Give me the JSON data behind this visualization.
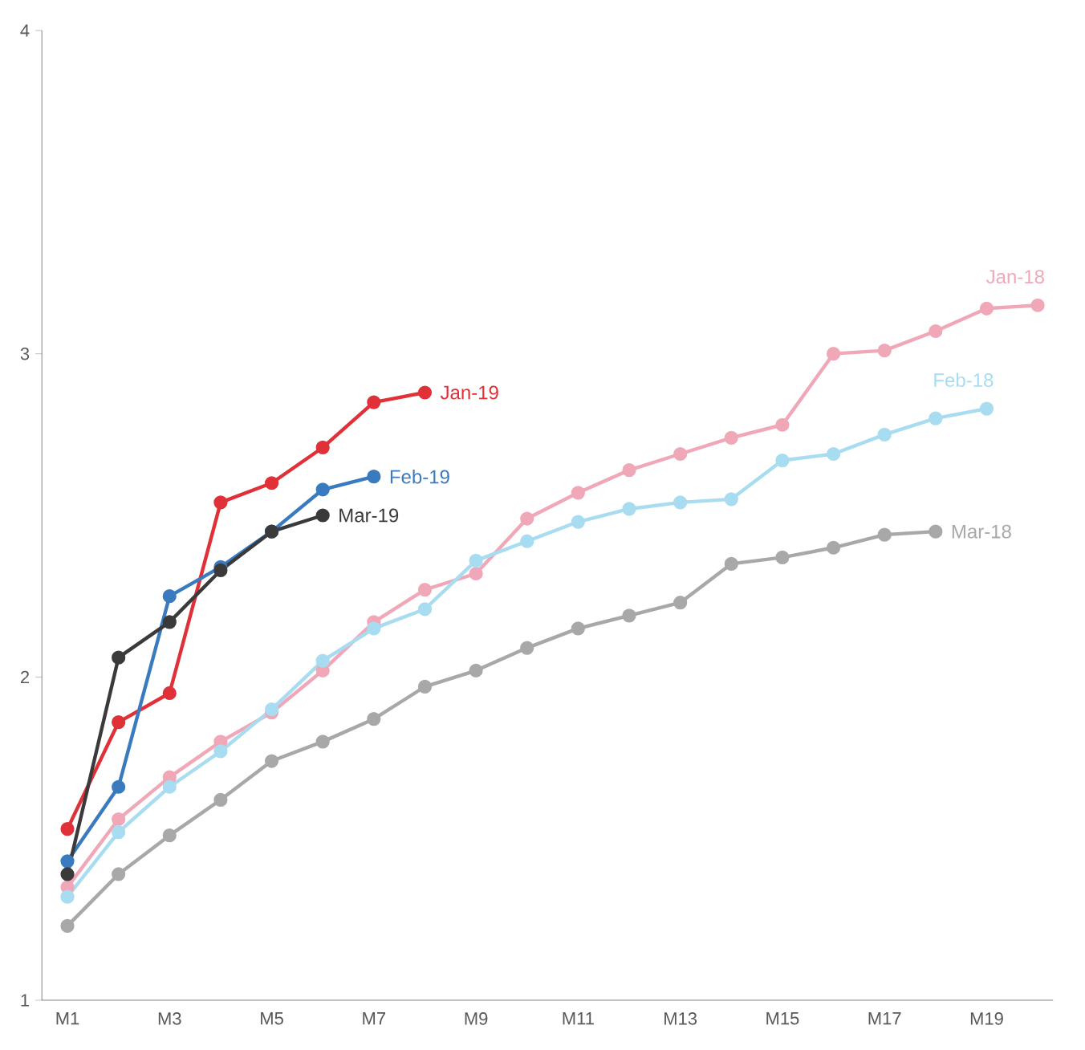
{
  "chart_data": {
    "type": "line",
    "categories": [
      "M1",
      null,
      "M3",
      null,
      "M5",
      null,
      "M7",
      null,
      "M9",
      null,
      "M11",
      null,
      "M13",
      null,
      "M15",
      null,
      "M17",
      null,
      "M19",
      null
    ],
    "series": [
      {
        "name": "Jan-18",
        "color": "#f0a8b8",
        "values": [
          1.35,
          1.56,
          1.69,
          1.8,
          1.89,
          2.02,
          2.17,
          2.27,
          2.32,
          2.49,
          2.57,
          2.64,
          2.69,
          2.74,
          2.78,
          3.0,
          3.01,
          3.07,
          3.14,
          3.15
        ]
      },
      {
        "name": "Feb-18",
        "color": "#a8dcf0",
        "values": [
          1.32,
          1.52,
          1.66,
          1.77,
          1.9,
          2.05,
          2.15,
          2.21,
          2.36,
          2.42,
          2.48,
          2.52,
          2.54,
          2.55,
          2.67,
          2.69,
          2.75,
          2.8,
          2.83,
          null
        ]
      },
      {
        "name": "Mar-18",
        "color": "#a8a8a8",
        "values": [
          1.23,
          1.39,
          1.51,
          1.62,
          1.74,
          1.8,
          1.87,
          1.97,
          2.02,
          2.09,
          2.15,
          2.19,
          2.23,
          2.35,
          2.37,
          2.4,
          2.44,
          2.45,
          null,
          null
        ]
      },
      {
        "name": "Jan-19",
        "color": "#e03038",
        "values": [
          1.53,
          1.86,
          1.95,
          2.54,
          2.6,
          2.71,
          2.85,
          2.88,
          null,
          null,
          null,
          null,
          null,
          null,
          null,
          null,
          null,
          null,
          null,
          null
        ]
      },
      {
        "name": "Feb-19",
        "color": "#3a7abf",
        "values": [
          1.43,
          1.66,
          2.25,
          2.34,
          2.45,
          2.58,
          2.62,
          null,
          null,
          null,
          null,
          null,
          null,
          null,
          null,
          null,
          null,
          null,
          null,
          null
        ]
      },
      {
        "name": "Mar-19",
        "color": "#3a3a3a",
        "values": [
          1.39,
          2.06,
          2.17,
          2.33,
          2.45,
          2.5,
          null,
          null,
          null,
          null,
          null,
          null,
          null,
          null,
          null,
          null,
          null,
          null,
          null,
          null
        ]
      }
    ],
    "ylim": [
      1,
      4
    ],
    "yticks": [
      1,
      2,
      3,
      4
    ],
    "marker": "circle",
    "line_style": "solid"
  }
}
